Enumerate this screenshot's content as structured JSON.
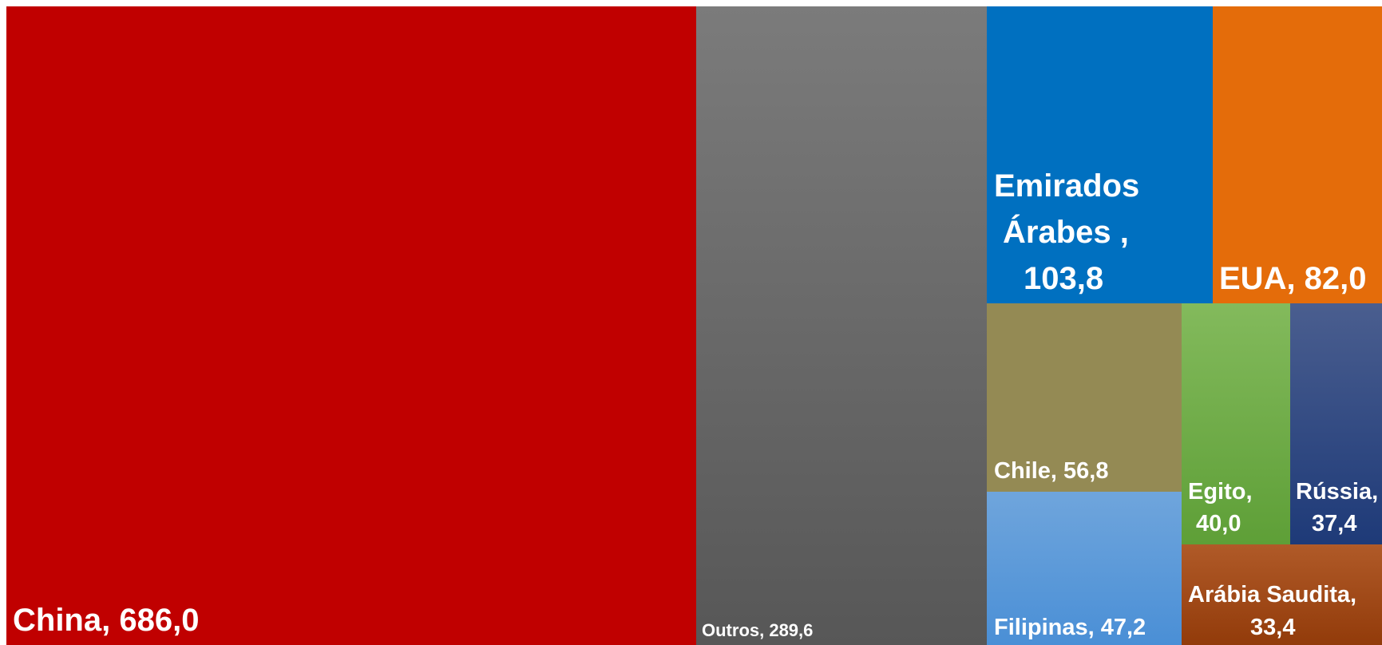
{
  "chart_data": {
    "type": "treemap",
    "title": "",
    "items": [
      {
        "label": "China, 686,0",
        "name": "China",
        "value": 686.0,
        "color": "#c00000"
      },
      {
        "label": "Outros, 289,6",
        "name": "Outros",
        "value": 289.6,
        "color": "#6a6a6a"
      },
      {
        "label": "Emirados Árabes , 103,8",
        "name": "Emirados Árabes",
        "value": 103.8,
        "color": "#0070c0"
      },
      {
        "label": "EUA, 82,0",
        "name": "EUA",
        "value": 82.0,
        "color": "#e46c0a"
      },
      {
        "label": "Chile, 56,8",
        "name": "Chile",
        "value": 56.8,
        "color": "#948a54"
      },
      {
        "label": "Filipinas, 47,2",
        "name": "Filipinas",
        "value": 47.2,
        "color": "#5b9bd5"
      },
      {
        "label": "Egito, 40,0",
        "name": "Egito",
        "value": 40.0,
        "color": "#70ad47"
      },
      {
        "label": "Rússia, 37,4",
        "name": "Rússia",
        "value": 37.4,
        "color": "#2e4a87"
      },
      {
        "label": "Arábia Saudita, 33,4",
        "name": "Arábia Saudita",
        "value": 33.4,
        "color": "#a14a18"
      }
    ]
  }
}
